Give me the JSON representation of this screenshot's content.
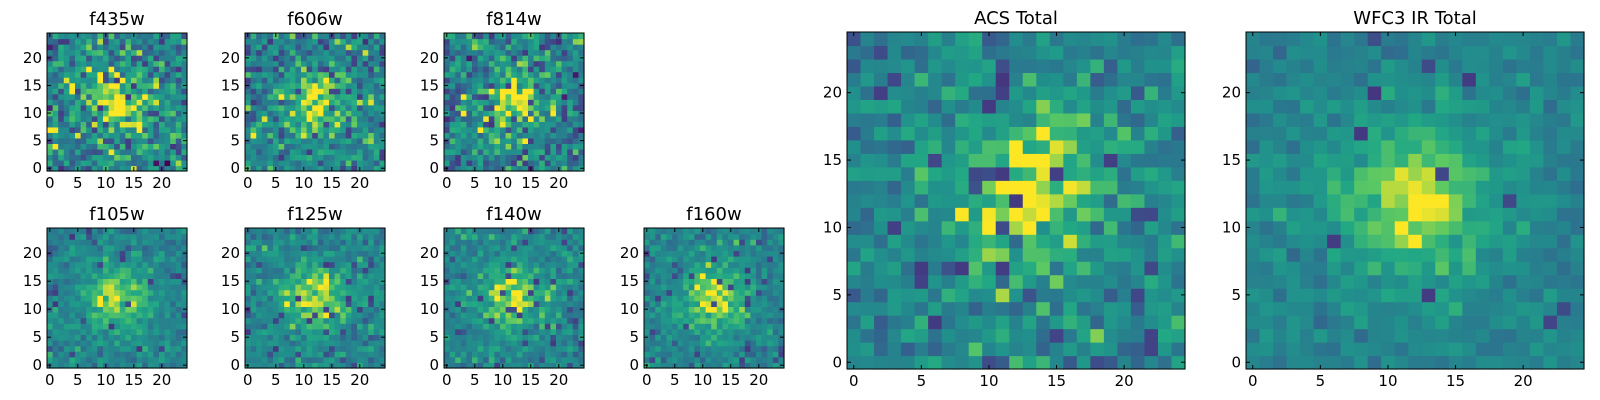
{
  "chart_data": [
    {
      "type": "heatmap",
      "title": "f435w",
      "grid_size": 25,
      "colormap": "viridis",
      "xticks": [
        "0",
        "5",
        "10",
        "15",
        "20"
      ],
      "yticks": [
        "0",
        "5",
        "10",
        "15",
        "20"
      ],
      "xlim": [
        -0.5,
        24.5
      ],
      "ylim": [
        -0.5,
        24.5
      ],
      "peak": [
        12,
        12
      ],
      "noise": 0.95,
      "dark_fraction": 0.06,
      "seed": 11
    },
    {
      "type": "heatmap",
      "title": "f606w",
      "grid_size": 25,
      "colormap": "viridis",
      "xticks": [
        "0",
        "5",
        "10",
        "15",
        "20"
      ],
      "yticks": [
        "0",
        "5",
        "10",
        "15",
        "20"
      ],
      "xlim": [
        -0.5,
        24.5
      ],
      "ylim": [
        -0.5,
        24.5
      ],
      "peak": [
        12,
        12
      ],
      "noise": 0.8,
      "dark_fraction": 0.05,
      "seed": 23
    },
    {
      "type": "heatmap",
      "title": "f814w",
      "grid_size": 25,
      "colormap": "viridis",
      "xticks": [
        "0",
        "5",
        "10",
        "15",
        "20"
      ],
      "yticks": [
        "0",
        "5",
        "10",
        "15",
        "20"
      ],
      "xlim": [
        -0.5,
        24.5
      ],
      "ylim": [
        -0.5,
        24.5
      ],
      "peak": [
        12,
        12
      ],
      "noise": 0.95,
      "dark_fraction": 0.06,
      "seed": 37
    },
    {
      "type": "heatmap",
      "title": "f105w",
      "grid_size": 25,
      "colormap": "viridis",
      "xticks": [
        "0",
        "5",
        "10",
        "15",
        "20"
      ],
      "yticks": [
        "0",
        "5",
        "10",
        "15",
        "20"
      ],
      "xlim": [
        -0.5,
        24.5
      ],
      "ylim": [
        -0.5,
        24.5
      ],
      "peak": [
        12,
        12
      ],
      "noise": 0.5,
      "dark_fraction": 0.03,
      "seed": 41
    },
    {
      "type": "heatmap",
      "title": "f125w",
      "grid_size": 25,
      "colormap": "viridis",
      "xticks": [
        "0",
        "5",
        "10",
        "15",
        "20"
      ],
      "yticks": [
        "0",
        "5",
        "10",
        "15",
        "20"
      ],
      "xlim": [
        -0.5,
        24.5
      ],
      "ylim": [
        -0.5,
        24.5
      ],
      "peak": [
        12,
        12
      ],
      "noise": 0.55,
      "dark_fraction": 0.04,
      "seed": 53
    },
    {
      "type": "heatmap",
      "title": "f140w",
      "grid_size": 25,
      "colormap": "viridis",
      "xticks": [
        "0",
        "5",
        "10",
        "15",
        "20"
      ],
      "yticks": [
        "0",
        "5",
        "10",
        "15",
        "20"
      ],
      "xlim": [
        -0.5,
        24.5
      ],
      "ylim": [
        -0.5,
        24.5
      ],
      "peak": [
        12,
        12
      ],
      "noise": 0.55,
      "dark_fraction": 0.04,
      "seed": 67
    },
    {
      "type": "heatmap",
      "title": "f160w",
      "grid_size": 25,
      "colormap": "viridis",
      "xticks": [
        "0",
        "5",
        "10",
        "15",
        "20"
      ],
      "yticks": [
        "0",
        "5",
        "10",
        "15",
        "20"
      ],
      "xlim": [
        -0.5,
        24.5
      ],
      "ylim": [
        -0.5,
        24.5
      ],
      "peak": [
        12,
        12
      ],
      "noise": 0.5,
      "dark_fraction": 0.04,
      "seed": 79
    },
    {
      "type": "heatmap",
      "title": "ACS Total",
      "grid_size": 25,
      "colormap": "viridis",
      "xticks": [
        "0",
        "5",
        "10",
        "15",
        "20"
      ],
      "yticks": [
        "0",
        "5",
        "10",
        "15",
        "20"
      ],
      "xlim": [
        -0.5,
        24.5
      ],
      "ylim": [
        -0.5,
        24.5
      ],
      "peak": [
        13,
        13
      ],
      "noise": 0.65,
      "dark_fraction": 0.04,
      "seed": 89
    },
    {
      "type": "heatmap",
      "title": "WFC3 IR Total",
      "grid_size": 25,
      "colormap": "viridis",
      "xticks": [
        "0",
        "5",
        "10",
        "15",
        "20"
      ],
      "yticks": [
        "0",
        "5",
        "10",
        "15",
        "20"
      ],
      "xlim": [
        -0.5,
        24.5
      ],
      "ylim": [
        -0.5,
        24.5
      ],
      "peak": [
        12,
        12
      ],
      "noise": 0.35,
      "dark_fraction": 0.02,
      "seed": 97
    }
  ]
}
